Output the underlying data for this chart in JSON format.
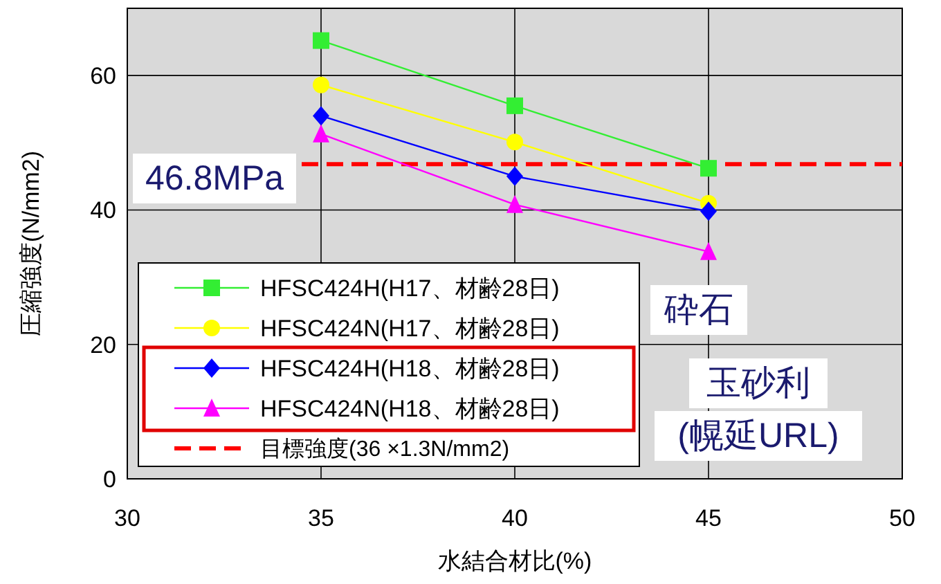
{
  "chart_data": {
    "type": "line",
    "xlabel": "水結合材比(%)",
    "ylabel": "圧縮強度(N/mm2)",
    "xlim": [
      30,
      50
    ],
    "xticks": [
      30,
      35,
      40,
      45,
      50
    ],
    "ylim": [
      0,
      70
    ],
    "yticks": [
      0,
      20,
      40,
      60
    ],
    "grid": true,
    "legend": "bottom left",
    "x": [
      35,
      40,
      45
    ],
    "series": [
      {
        "name": "HFSC424H(H17、材齢28日)",
        "color": "#33ee33",
        "marker": "square",
        "values": [
          65.2,
          55.5,
          46.2
        ]
      },
      {
        "name": "HFSC424N(H17、材齢28日)",
        "color": "#ffff00",
        "marker": "circle",
        "values": [
          58.6,
          50.1,
          41.0
        ]
      },
      {
        "name": "HFSC424H(H18、材齢28日)",
        "color": "#0000ff",
        "marker": "diamond",
        "values": [
          54.0,
          45.0,
          39.8
        ]
      },
      {
        "name": "HFSC424N(H18、材齢28日)",
        "color": "#ff00ff",
        "marker": "triangle",
        "values": [
          51.3,
          40.8,
          33.8
        ]
      }
    ],
    "ref_lines": [
      {
        "axis": "y",
        "value": 46.8,
        "label": "目標強度(36 ×1.3N/mm2)",
        "color": "#ff0000",
        "line_style": "dashed"
      }
    ],
    "annotations": [
      "46.8MPa",
      "砕石",
      "玉砂利",
      "(幌延URL)"
    ]
  }
}
